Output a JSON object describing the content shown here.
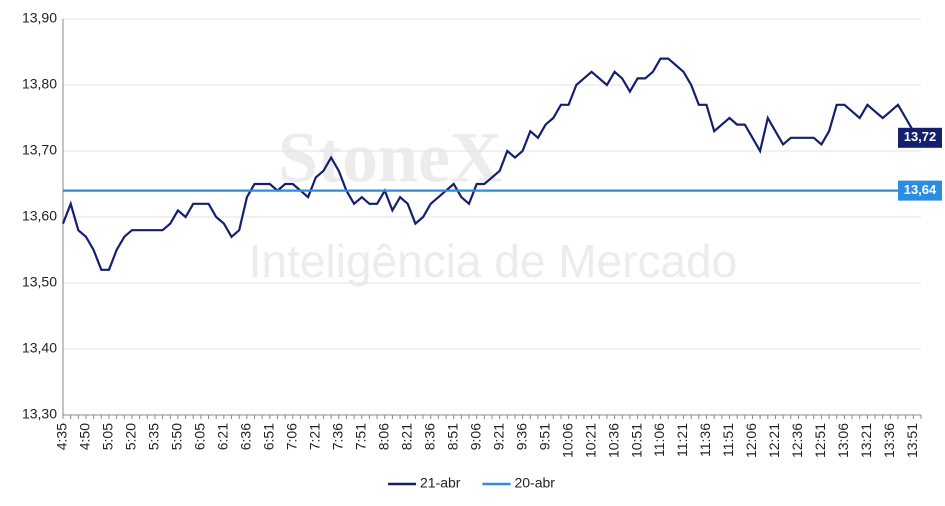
{
  "chart_data": {
    "type": "line",
    "watermark": {
      "brand": "StoneX",
      "subtitle": "Inteligência de Mercado"
    },
    "categories": [
      "4:35",
      null,
      null,
      "4:50",
      null,
      null,
      "5:05",
      null,
      null,
      "5:20",
      null,
      null,
      "5:35",
      null,
      null,
      "5:50",
      null,
      null,
      "6:05",
      null,
      null,
      "6:21",
      null,
      null,
      "6:36",
      null,
      null,
      "6:51",
      null,
      null,
      "7:06",
      null,
      null,
      "7:21",
      null,
      null,
      "7:36",
      null,
      null,
      "7:51",
      null,
      null,
      "8:06",
      null,
      null,
      "8:21",
      null,
      null,
      "8:36",
      null,
      null,
      "8:51",
      null,
      null,
      "9:06",
      null,
      null,
      "9:21",
      null,
      null,
      "9:36",
      null,
      null,
      "9:51",
      null,
      null,
      "10:06",
      null,
      null,
      "10:21",
      null,
      null,
      "10:36",
      null,
      null,
      "10:51",
      null,
      null,
      "11:06",
      null,
      null,
      "11:21",
      null,
      null,
      "11:36",
      null,
      null,
      "11:51",
      null,
      null,
      "12:06",
      null,
      null,
      "12:21",
      null,
      null,
      "12:36",
      null,
      null,
      "12:51",
      null,
      null,
      "13:06",
      null,
      null,
      "13:21",
      null,
      null,
      "13:36",
      null,
      null,
      "13:51",
      null
    ],
    "series": [
      {
        "name": "21-abr",
        "color": "#14206e",
        "end_label": "13,72",
        "values": [
          13.59,
          13.62,
          13.58,
          13.57,
          13.55,
          13.52,
          13.52,
          13.55,
          13.57,
          13.58,
          13.58,
          13.58,
          13.58,
          13.58,
          13.59,
          13.61,
          13.6,
          13.62,
          13.62,
          13.62,
          13.6,
          13.59,
          13.57,
          13.58,
          13.63,
          13.65,
          13.65,
          13.65,
          13.64,
          13.65,
          13.65,
          13.64,
          13.63,
          13.66,
          13.67,
          13.69,
          13.67,
          13.64,
          13.62,
          13.63,
          13.62,
          13.62,
          13.64,
          13.61,
          13.63,
          13.62,
          13.59,
          13.6,
          13.62,
          13.63,
          13.64,
          13.65,
          13.63,
          13.62,
          13.65,
          13.65,
          13.66,
          13.67,
          13.7,
          13.69,
          13.7,
          13.73,
          13.72,
          13.74,
          13.75,
          13.77,
          13.77,
          13.8,
          13.81,
          13.82,
          13.81,
          13.8,
          13.82,
          13.81,
          13.79,
          13.81,
          13.81,
          13.82,
          13.84,
          13.84,
          13.83,
          13.82,
          13.8,
          13.77,
          13.77,
          13.73,
          13.74,
          13.75,
          13.74,
          13.74,
          13.72,
          13.7,
          13.75,
          13.73,
          13.71,
          13.72,
          13.72,
          13.72,
          13.72,
          13.71,
          13.73,
          13.77,
          13.77,
          13.76,
          13.75,
          13.77,
          13.76,
          13.75,
          13.76,
          13.77,
          13.75,
          13.73,
          13.72
        ]
      },
      {
        "name": "20-abr",
        "color": "#2b8de0",
        "value": 13.64,
        "end_label": "13,64"
      }
    ],
    "ylim": [
      13.3,
      13.9
    ],
    "yticks": [
      {
        "value": 13.3,
        "label": "13,30"
      },
      {
        "value": 13.4,
        "label": "13,40"
      },
      {
        "value": 13.5,
        "label": "13,50"
      },
      {
        "value": 13.6,
        "label": "13,60"
      },
      {
        "value": 13.7,
        "label": "13,70"
      },
      {
        "value": 13.8,
        "label": "13,80"
      },
      {
        "value": 13.9,
        "label": "13,90"
      }
    ],
    "grid": true,
    "legend": "bottom"
  }
}
